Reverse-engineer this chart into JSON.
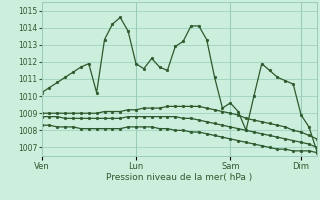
{
  "background_color": "#cceedd",
  "grid_color": "#99ccbb",
  "line_color": "#2d5a2d",
  "marker_color": "#2d5a2d",
  "xlabel": "Pression niveau de la mer( hPa )",
  "ylim": [
    1006.5,
    1015.5
  ],
  "yticks": [
    1007,
    1008,
    1009,
    1010,
    1011,
    1012,
    1013,
    1014,
    1015
  ],
  "xtick_labels": [
    "Ven",
    "Lun",
    "Sam",
    "Dim"
  ],
  "xtick_positions": [
    0,
    12,
    24,
    33
  ],
  "total_points": 36,
  "series1_y": [
    1010.2,
    1010.5,
    1010.8,
    1011.1,
    1011.4,
    1011.7,
    1011.9,
    1010.2,
    1013.3,
    1014.2,
    1014.6,
    1013.8,
    1011.9,
    1011.6,
    1012.2,
    1011.7,
    1011.5,
    1012.9,
    1013.2,
    1014.1,
    1014.1,
    1013.3,
    1011.1,
    1009.3,
    1009.6,
    1009.1,
    1008.0,
    1010.0,
    1011.9,
    1011.5,
    1011.1,
    1010.9,
    1010.7,
    1008.9,
    1008.2,
    1006.8
  ],
  "series2_x": [
    0,
    1,
    2,
    3,
    4,
    5,
    6,
    7,
    8,
    9,
    10,
    11,
    12,
    13,
    14,
    15,
    16,
    17,
    18,
    19,
    20,
    21,
    22,
    23,
    24,
    25,
    26,
    27,
    28,
    29,
    30,
    31,
    32,
    33,
    34,
    35
  ],
  "series2_y": [
    1009.0,
    1009.0,
    1009.0,
    1009.0,
    1009.0,
    1009.0,
    1009.0,
    1009.0,
    1009.1,
    1009.1,
    1009.1,
    1009.2,
    1009.2,
    1009.3,
    1009.3,
    1009.3,
    1009.4,
    1009.4,
    1009.4,
    1009.4,
    1009.4,
    1009.3,
    1009.2,
    1009.1,
    1009.0,
    1008.9,
    1008.7,
    1008.6,
    1008.5,
    1008.4,
    1008.3,
    1008.2,
    1008.0,
    1007.9,
    1007.7,
    1007.5
  ],
  "series3_x": [
    0,
    1,
    2,
    3,
    4,
    5,
    6,
    7,
    8,
    9,
    10,
    11,
    12,
    13,
    14,
    15,
    16,
    17,
    18,
    19,
    20,
    21,
    22,
    23,
    24,
    25,
    26,
    27,
    28,
    29,
    30,
    31,
    32,
    33,
    34,
    35
  ],
  "series3_y": [
    1008.8,
    1008.8,
    1008.8,
    1008.7,
    1008.7,
    1008.7,
    1008.7,
    1008.7,
    1008.7,
    1008.7,
    1008.7,
    1008.8,
    1008.8,
    1008.8,
    1008.8,
    1008.8,
    1008.8,
    1008.8,
    1008.7,
    1008.7,
    1008.6,
    1008.5,
    1008.4,
    1008.3,
    1008.2,
    1008.1,
    1008.0,
    1007.9,
    1007.8,
    1007.7,
    1007.6,
    1007.5,
    1007.4,
    1007.3,
    1007.2,
    1007.0
  ],
  "series4_x": [
    0,
    1,
    2,
    3,
    4,
    5,
    6,
    7,
    8,
    9,
    10,
    11,
    12,
    13,
    14,
    15,
    16,
    17,
    18,
    19,
    20,
    21,
    22,
    23,
    24,
    25,
    26,
    27,
    28,
    29,
    30,
    31,
    32,
    33,
    34,
    35
  ],
  "series4_y": [
    1008.3,
    1008.3,
    1008.2,
    1008.2,
    1008.2,
    1008.1,
    1008.1,
    1008.1,
    1008.1,
    1008.1,
    1008.1,
    1008.2,
    1008.2,
    1008.2,
    1008.2,
    1008.1,
    1008.1,
    1008.0,
    1008.0,
    1007.9,
    1007.9,
    1007.8,
    1007.7,
    1007.6,
    1007.5,
    1007.4,
    1007.3,
    1007.2,
    1007.1,
    1007.0,
    1006.9,
    1006.9,
    1006.8,
    1006.8,
    1006.8,
    1006.7
  ]
}
